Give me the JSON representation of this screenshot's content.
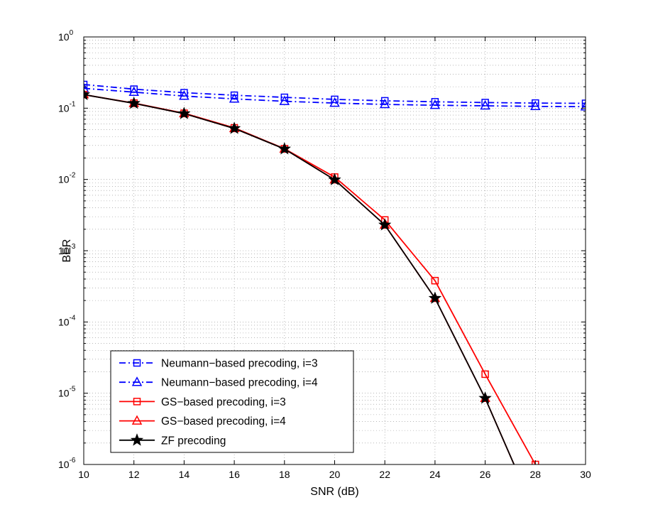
{
  "chart_data": {
    "type": "line",
    "title": "",
    "xlabel": "SNR (dB)",
    "ylabel": "BER",
    "xscale": "linear",
    "yscale": "log",
    "xlim": [
      10,
      30
    ],
    "ylim": [
      1e-06,
      1
    ],
    "grid": true,
    "legend_position": "bottom-left",
    "xticks": [
      10,
      12,
      14,
      16,
      18,
      20,
      22,
      24,
      26,
      28,
      30
    ],
    "xtick_labels": [
      "10",
      "12",
      "14",
      "16",
      "18",
      "20",
      "22",
      "24",
      "26",
      "28",
      "30"
    ],
    "yticks": [
      {
        "value": 1,
        "base": "10",
        "exp": "0"
      },
      {
        "value": 0.1,
        "base": "10",
        "exp": "-1"
      },
      {
        "value": 0.01,
        "base": "10",
        "exp": "-2"
      },
      {
        "value": 0.001,
        "base": "10",
        "exp": "-3"
      },
      {
        "value": 0.0001,
        "base": "10",
        "exp": "-4"
      },
      {
        "value": 1e-05,
        "base": "10",
        "exp": "-5"
      },
      {
        "value": 1e-06,
        "base": "10",
        "exp": "-6"
      }
    ],
    "series": [
      {
        "name": "Neumann−based precoding, i=3",
        "color": "#0000ff",
        "line_style": "dashdot",
        "marker": "square",
        "x": [
          10,
          12,
          14,
          16,
          18,
          20,
          22,
          24,
          26,
          28,
          30
        ],
        "y": [
          0.215,
          0.185,
          0.165,
          0.152,
          0.142,
          0.133,
          0.127,
          0.123,
          0.12,
          0.118,
          0.117
        ]
      },
      {
        "name": "Neumann−based precoding, i=4",
        "color": "#0000ff",
        "line_style": "dashdot",
        "marker": "triangle",
        "x": [
          10,
          12,
          14,
          16,
          18,
          20,
          22,
          24,
          26,
          28,
          30
        ],
        "y": [
          0.19,
          0.168,
          0.148,
          0.135,
          0.125,
          0.118,
          0.113,
          0.11,
          0.108,
          0.106,
          0.105
        ]
      },
      {
        "name": "GS−based precoding, i=3",
        "color": "#ff0000",
        "line_style": "solid",
        "marker": "square",
        "x": [
          10,
          12,
          14,
          16,
          18,
          20,
          22,
          24,
          26,
          28
        ],
        "y": [
          0.155,
          0.118,
          0.085,
          0.053,
          0.027,
          0.0108,
          0.0027,
          0.00038,
          1.85e-05,
          1e-06
        ]
      },
      {
        "name": "GS−based precoding, i=4",
        "color": "#ff0000",
        "line_style": "solid",
        "marker": "triangle",
        "x": [
          10,
          12,
          14,
          16,
          18,
          20,
          22,
          24,
          26,
          27.15
        ],
        "y": [
          0.155,
          0.117,
          0.084,
          0.052,
          0.0268,
          0.0099,
          0.0023,
          0.000215,
          8.5e-06,
          1e-06
        ]
      },
      {
        "name": "ZF precoding",
        "color": "#000000",
        "line_style": "solid",
        "marker": "star",
        "x": [
          10,
          12,
          14,
          16,
          18,
          20,
          22,
          24,
          26,
          27.15
        ],
        "y": [
          0.155,
          0.117,
          0.084,
          0.052,
          0.0268,
          0.0099,
          0.0023,
          0.000215,
          8.5e-06,
          1e-06
        ]
      }
    ]
  }
}
